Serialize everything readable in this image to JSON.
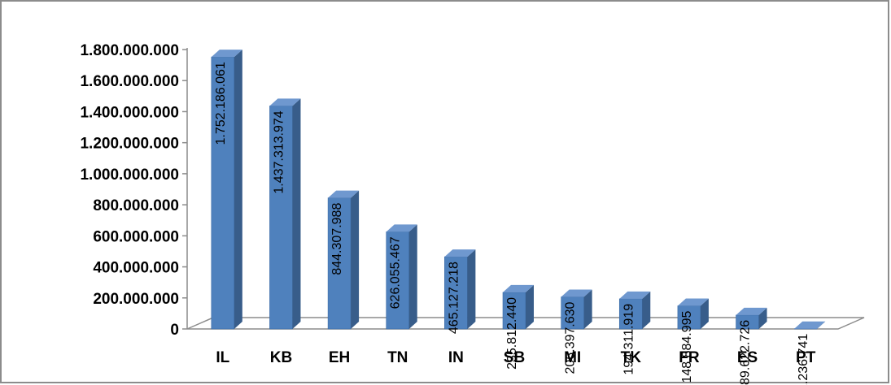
{
  "chart_data": {
    "type": "bar",
    "style": "3d-column",
    "categories": [
      "IL",
      "KB",
      "EH",
      "TN",
      "IN",
      "SB",
      "MI",
      "TK",
      "FR",
      "ES",
      "PT"
    ],
    "values": [
      1752186061,
      1437313974,
      844307988,
      626055467,
      465127218,
      235812440,
      206397630,
      194311919,
      148884995,
      89622726,
      1236741
    ],
    "data_labels": [
      "1.752.186.061",
      "1.437.313.974",
      "844.307.988",
      "626.055.467",
      "465.127.218",
      "235.812.440",
      "206.397.630",
      "194.311.919",
      "148.884.995",
      "89.622.726",
      "1.236.741"
    ],
    "yticks": [
      0,
      200000000,
      400000000,
      600000000,
      800000000,
      1000000000,
      1200000000,
      1400000000,
      1600000000,
      1800000000
    ],
    "ytick_labels": [
      "0",
      "200.000.000",
      "400.000.000",
      "600.000.000",
      "800.000.000",
      "1.000.000.000",
      "1.200.000.000",
      "1.400.000.000",
      "1.600.000.000",
      "1.800.000.000"
    ],
    "ylim": [
      0,
      1800000000
    ],
    "title": "",
    "xlabel": "",
    "ylabel": "",
    "grid": false,
    "legend": "none",
    "colors": {
      "bar_front": "#4f81bd",
      "bar_side": "#385d8a",
      "bar_top": "#6f98cf",
      "floor": "#ffffff",
      "axis": "#8c8c8c"
    }
  }
}
